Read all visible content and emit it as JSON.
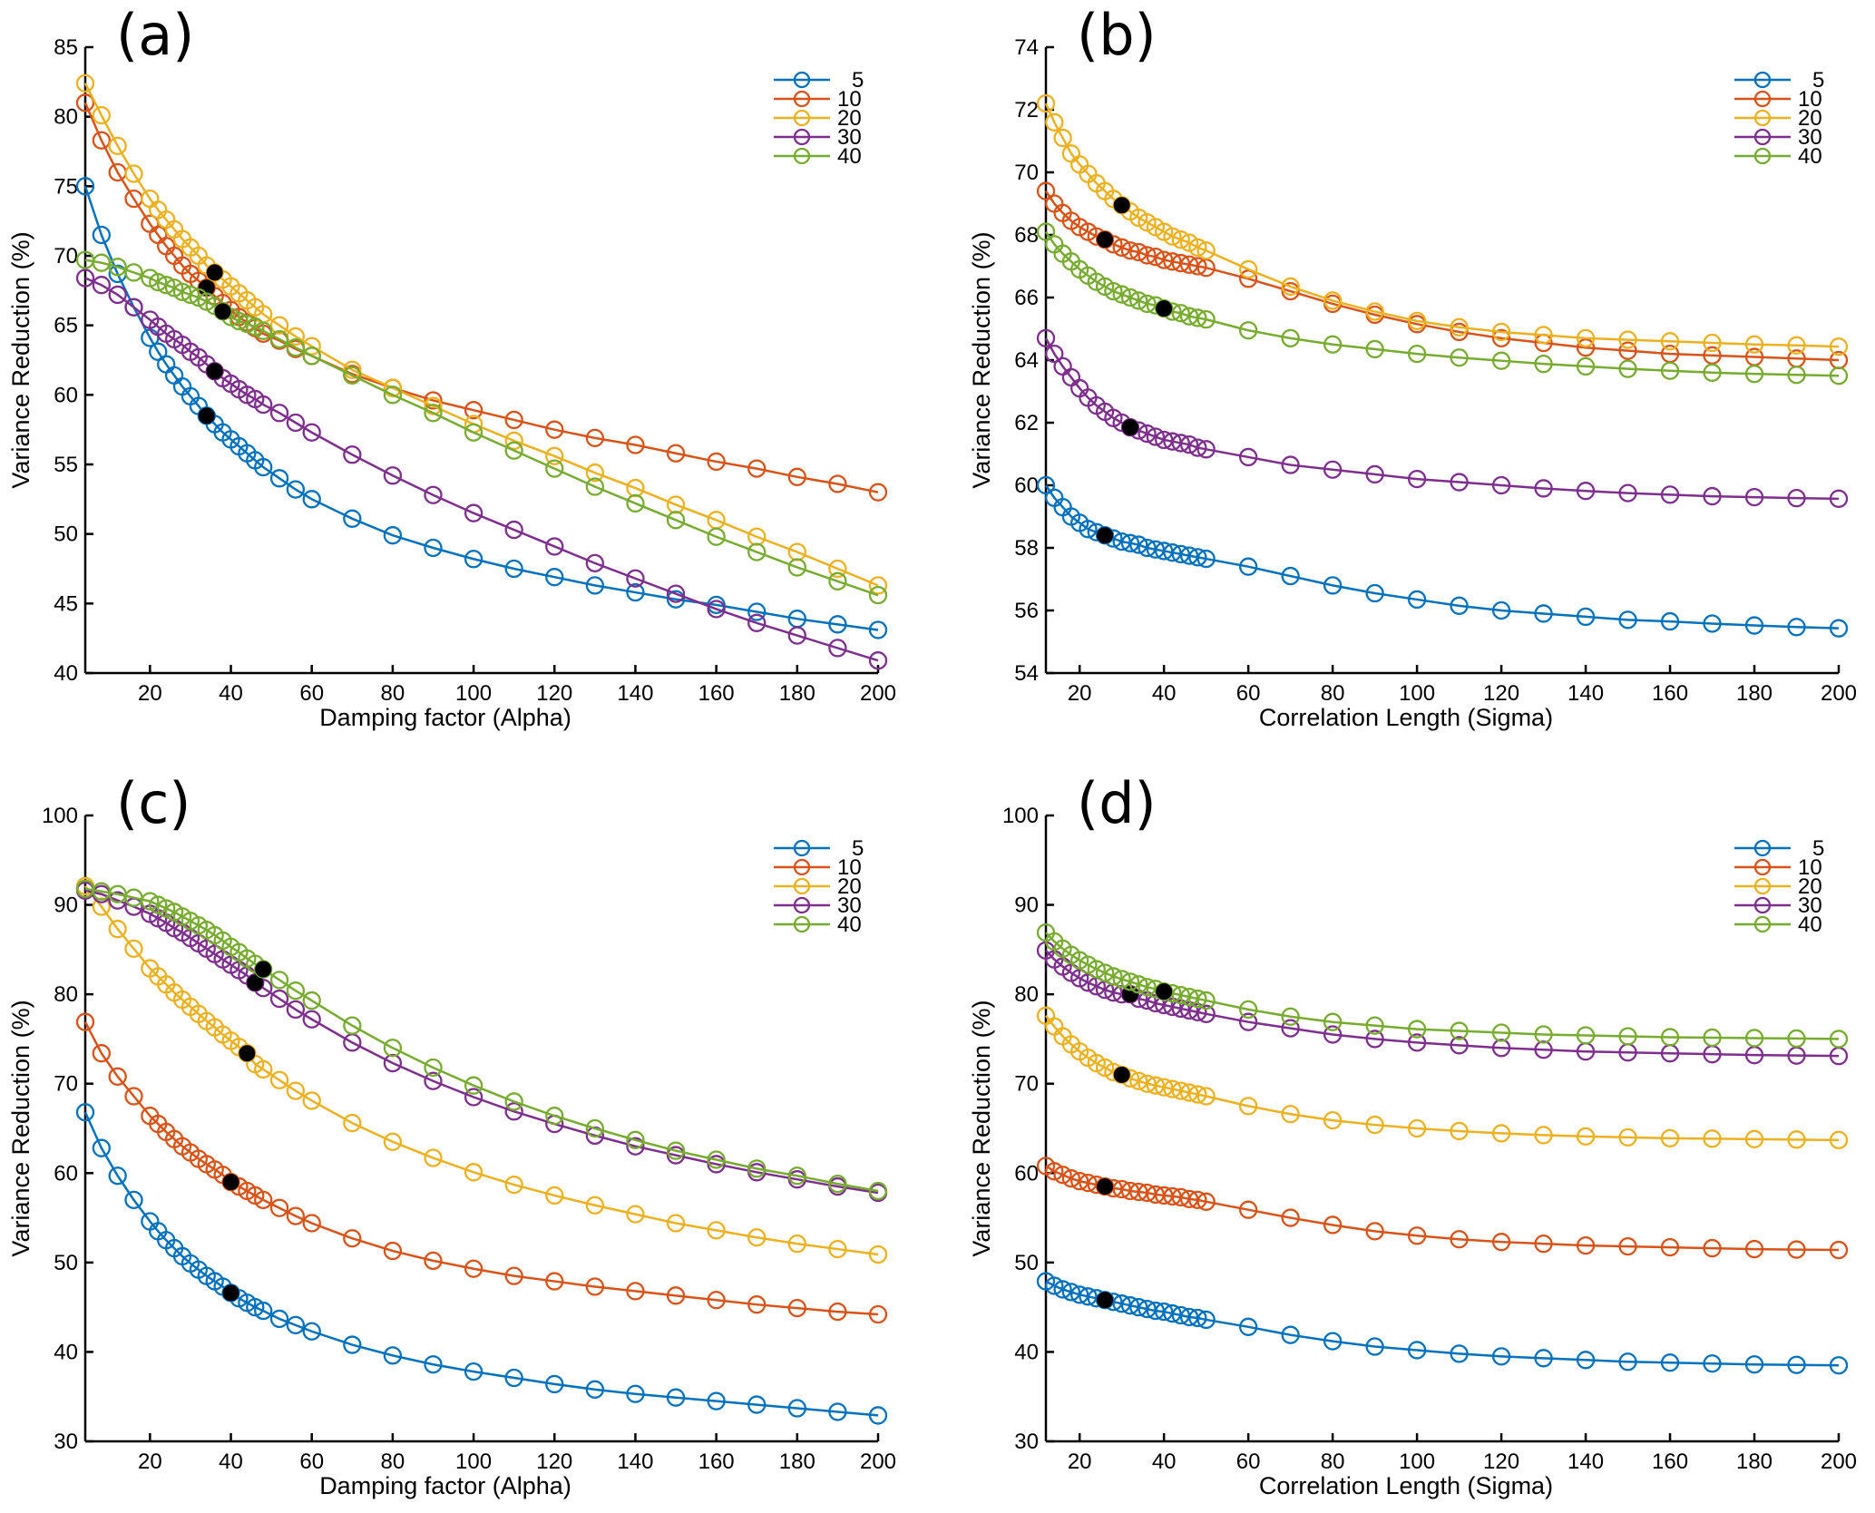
{
  "chart_data": [
    {
      "type": "line",
      "panel_label": "(a)",
      "xlabel": "Damping factor (Alpha)",
      "ylabel": "Variance Reduction (%)",
      "xlim": [
        4,
        200
      ],
      "ylim": [
        40,
        85
      ],
      "xticks": [
        20,
        40,
        60,
        80,
        100,
        120,
        140,
        160,
        180,
        200
      ],
      "yticks": [
        40,
        45,
        50,
        55,
        60,
        65,
        70,
        75,
        80,
        85
      ],
      "legend_position": "top-right",
      "x": [
        4,
        8,
        12,
        16,
        20,
        22,
        24,
        26,
        28,
        30,
        32,
        34,
        36,
        38,
        40,
        42,
        44,
        46,
        48,
        52,
        56,
        60,
        70,
        80,
        90,
        100,
        110,
        120,
        130,
        140,
        150,
        160,
        170,
        180,
        190,
        200
      ],
      "series": [
        {
          "name": "5",
          "color": "#0072BD",
          "highlight_x": 34,
          "values": [
            75.0,
            71.5,
            68.7,
            66.3,
            64.1,
            63.1,
            62.2,
            61.4,
            60.6,
            59.9,
            59.2,
            58.5,
            57.9,
            57.3,
            56.8,
            56.3,
            55.8,
            55.3,
            54.8,
            54.0,
            53.2,
            52.5,
            51.1,
            49.9,
            49.0,
            48.2,
            47.5,
            46.9,
            46.3,
            45.8,
            45.3,
            44.9,
            44.4,
            43.9,
            43.5,
            43.1
          ]
        },
        {
          "name": "10",
          "color": "#D95319",
          "highlight_x": 34,
          "values": [
            81.0,
            78.3,
            76.0,
            74.1,
            72.3,
            71.5,
            70.7,
            70.0,
            69.3,
            68.7,
            68.2,
            67.7,
            67.1,
            66.6,
            66.1,
            65.6,
            65.2,
            64.8,
            64.4,
            63.9,
            63.3,
            62.8,
            61.5,
            60.5,
            59.6,
            58.9,
            58.2,
            57.5,
            56.9,
            56.4,
            55.8,
            55.2,
            54.7,
            54.1,
            53.6,
            53.0
          ]
        },
        {
          "name": "20",
          "color": "#EDB120",
          "highlight_x": 36,
          "values": [
            82.4,
            80.1,
            77.9,
            75.9,
            74.1,
            73.3,
            72.6,
            71.9,
            71.2,
            70.6,
            70.0,
            69.3,
            68.8,
            68.3,
            67.8,
            67.3,
            66.8,
            66.3,
            65.8,
            65.0,
            64.2,
            63.5,
            61.8,
            60.5,
            59.2,
            57.9,
            56.7,
            55.6,
            54.4,
            53.3,
            52.1,
            51.0,
            49.8,
            48.7,
            47.5,
            46.3
          ]
        },
        {
          "name": "30",
          "color": "#7E2F8E",
          "highlight_x": 36,
          "values": [
            68.4,
            67.9,
            67.2,
            66.3,
            65.4,
            64.9,
            64.4,
            64.0,
            63.6,
            63.1,
            62.7,
            62.2,
            61.7,
            61.2,
            60.8,
            60.4,
            60.0,
            59.7,
            59.3,
            58.7,
            58.0,
            57.3,
            55.7,
            54.2,
            52.8,
            51.5,
            50.3,
            49.1,
            47.9,
            46.8,
            45.7,
            44.6,
            43.6,
            42.7,
            41.8,
            40.9
          ]
        },
        {
          "name": "40",
          "color": "#77AC30",
          "highlight_x": 38,
          "values": [
            69.7,
            69.5,
            69.2,
            68.8,
            68.4,
            68.1,
            67.9,
            67.7,
            67.4,
            67.2,
            67.0,
            66.7,
            66.4,
            66.0,
            65.6,
            65.3,
            65.1,
            64.9,
            64.6,
            64.0,
            63.4,
            62.8,
            61.4,
            60.0,
            58.7,
            57.3,
            56.0,
            54.7,
            53.4,
            52.2,
            51.0,
            49.8,
            48.7,
            47.6,
            46.6,
            45.6
          ]
        }
      ]
    },
    {
      "type": "line",
      "panel_label": "(b)",
      "xlabel": "Correlation Length (Sigma)",
      "ylabel": "Variance Reduction (%)",
      "xlim": [
        12,
        200
      ],
      "ylim": [
        54,
        74
      ],
      "xticks": [
        20,
        40,
        60,
        80,
        100,
        120,
        140,
        160,
        180,
        200
      ],
      "yticks": [
        54,
        56,
        58,
        60,
        62,
        64,
        66,
        68,
        70,
        72,
        74
      ],
      "legend_position": "top-right",
      "x": [
        12,
        14,
        16,
        18,
        20,
        22,
        24,
        26,
        28,
        30,
        32,
        34,
        36,
        38,
        40,
        42,
        44,
        46,
        48,
        50,
        60,
        70,
        80,
        90,
        100,
        110,
        120,
        130,
        140,
        150,
        160,
        170,
        180,
        190,
        200
      ],
      "series": [
        {
          "name": "5",
          "color": "#0072BD",
          "highlight_x": 26,
          "values": [
            60.0,
            59.6,
            59.3,
            59.0,
            58.8,
            58.6,
            58.5,
            58.4,
            58.3,
            58.2,
            58.15,
            58.1,
            58.0,
            57.95,
            57.9,
            57.85,
            57.8,
            57.75,
            57.7,
            57.65,
            57.4,
            57.1,
            56.8,
            56.55,
            56.35,
            56.15,
            56.0,
            55.9,
            55.8,
            55.7,
            55.65,
            55.58,
            55.52,
            55.47,
            55.43
          ]
        },
        {
          "name": "10",
          "color": "#D95319",
          "highlight_x": 26,
          "values": [
            69.4,
            69.0,
            68.7,
            68.45,
            68.25,
            68.1,
            67.95,
            67.85,
            67.7,
            67.6,
            67.5,
            67.45,
            67.35,
            67.3,
            67.2,
            67.15,
            67.1,
            67.05,
            67.0,
            66.95,
            66.6,
            66.2,
            65.8,
            65.45,
            65.15,
            64.9,
            64.7,
            64.55,
            64.4,
            64.3,
            64.2,
            64.15,
            64.1,
            64.05,
            64.0
          ]
        },
        {
          "name": "20",
          "color": "#EDB120",
          "highlight_x": 30,
          "values": [
            72.2,
            71.6,
            71.1,
            70.6,
            70.25,
            69.95,
            69.65,
            69.4,
            69.15,
            68.95,
            68.75,
            68.55,
            68.4,
            68.25,
            68.1,
            67.95,
            67.85,
            67.75,
            67.6,
            67.5,
            66.9,
            66.35,
            65.9,
            65.55,
            65.25,
            65.05,
            64.9,
            64.8,
            64.7,
            64.65,
            64.6,
            64.55,
            64.5,
            64.47,
            64.43
          ]
        },
        {
          "name": "30",
          "color": "#7E2F8E",
          "highlight_x": 32,
          "values": [
            64.7,
            64.2,
            63.8,
            63.45,
            63.1,
            62.8,
            62.55,
            62.35,
            62.15,
            62.0,
            61.85,
            61.75,
            61.65,
            61.55,
            61.45,
            61.4,
            61.35,
            61.3,
            61.2,
            61.15,
            60.9,
            60.65,
            60.5,
            60.35,
            60.2,
            60.1,
            60.0,
            59.9,
            59.82,
            59.75,
            59.7,
            59.65,
            59.62,
            59.59,
            59.57
          ]
        },
        {
          "name": "40",
          "color": "#77AC30",
          "highlight_x": 40,
          "values": [
            68.1,
            67.7,
            67.4,
            67.15,
            66.9,
            66.7,
            66.5,
            66.35,
            66.2,
            66.1,
            66.0,
            65.9,
            65.8,
            65.75,
            65.65,
            65.55,
            65.5,
            65.4,
            65.35,
            65.3,
            64.95,
            64.7,
            64.5,
            64.35,
            64.2,
            64.08,
            63.98,
            63.88,
            63.8,
            63.72,
            63.66,
            63.6,
            63.56,
            63.53,
            63.5
          ]
        }
      ]
    },
    {
      "type": "line",
      "panel_label": "(c)",
      "xlabel": "Damping factor (Alpha)",
      "ylabel": "Variance Reduction (%)",
      "xlim": [
        4,
        200
      ],
      "ylim": [
        30,
        100
      ],
      "xticks": [
        20,
        40,
        60,
        80,
        100,
        120,
        140,
        160,
        180,
        200
      ],
      "yticks": [
        30,
        40,
        50,
        60,
        70,
        80,
        90,
        100
      ],
      "legend_position": "top-right",
      "x": [
        4,
        8,
        12,
        16,
        20,
        22,
        24,
        26,
        28,
        30,
        32,
        34,
        36,
        38,
        40,
        42,
        44,
        46,
        48,
        52,
        56,
        60,
        70,
        80,
        90,
        100,
        110,
        120,
        130,
        140,
        150,
        160,
        170,
        180,
        190,
        200
      ],
      "series": [
        {
          "name": "5",
          "color": "#0072BD",
          "highlight_x": 40,
          "values": [
            66.8,
            62.8,
            59.7,
            57.0,
            54.6,
            53.5,
            52.5,
            51.6,
            50.7,
            49.9,
            49.2,
            48.5,
            47.9,
            47.3,
            46.6,
            46.0,
            45.5,
            45.0,
            44.6,
            43.7,
            43.0,
            42.3,
            40.8,
            39.6,
            38.6,
            37.8,
            37.1,
            36.4,
            35.8,
            35.3,
            34.9,
            34.5,
            34.1,
            33.7,
            33.3,
            32.9
          ]
        },
        {
          "name": "10",
          "color": "#D95319",
          "highlight_x": 40,
          "values": [
            76.9,
            73.4,
            70.8,
            68.6,
            66.4,
            65.5,
            64.6,
            63.8,
            63.0,
            62.3,
            61.6,
            61.0,
            60.4,
            59.8,
            59.0,
            58.5,
            58.0,
            57.5,
            57.0,
            56.1,
            55.2,
            54.4,
            52.7,
            51.3,
            50.2,
            49.3,
            48.5,
            47.9,
            47.3,
            46.8,
            46.3,
            45.8,
            45.3,
            44.9,
            44.5,
            44.2
          ]
        },
        {
          "name": "20",
          "color": "#EDB120",
          "highlight_x": 44,
          "values": [
            92.1,
            89.8,
            87.3,
            85.1,
            82.9,
            82.0,
            81.1,
            80.2,
            79.4,
            78.6,
            77.8,
            77.0,
            76.3,
            75.5,
            74.8,
            74.1,
            73.4,
            72.2,
            71.6,
            70.4,
            69.2,
            68.1,
            65.6,
            63.5,
            61.7,
            60.1,
            58.7,
            57.5,
            56.4,
            55.4,
            54.4,
            53.6,
            52.8,
            52.1,
            51.5,
            50.9
          ]
        },
        {
          "name": "30",
          "color": "#7E2F8E",
          "highlight_x": 46,
          "values": [
            91.6,
            91.2,
            90.5,
            89.8,
            89.0,
            88.5,
            88.0,
            87.4,
            86.9,
            86.3,
            85.7,
            85.1,
            84.5,
            83.9,
            83.3,
            82.7,
            82.1,
            81.3,
            80.7,
            79.5,
            78.3,
            77.2,
            74.6,
            72.3,
            70.3,
            68.5,
            66.9,
            65.5,
            64.2,
            63.0,
            62.0,
            61.0,
            60.1,
            59.3,
            58.5,
            57.8
          ]
        },
        {
          "name": "40",
          "color": "#77AC30",
          "highlight_x": 48,
          "values": [
            91.8,
            91.5,
            91.2,
            90.8,
            90.4,
            90.0,
            89.6,
            89.2,
            88.7,
            88.2,
            87.7,
            87.2,
            86.6,
            86.0,
            85.3,
            84.7,
            84.0,
            83.4,
            82.8,
            81.6,
            80.4,
            79.3,
            76.5,
            74.0,
            71.8,
            69.8,
            68.0,
            66.4,
            65.0,
            63.7,
            62.5,
            61.5,
            60.5,
            59.7,
            58.8,
            58.0
          ]
        }
      ]
    },
    {
      "type": "line",
      "panel_label": "(d)",
      "xlabel": "Correlation Length (Sigma)",
      "ylabel": "Variance Reduction (%)",
      "xlim": [
        12,
        200
      ],
      "ylim": [
        30,
        100
      ],
      "xticks": [
        20,
        40,
        60,
        80,
        100,
        120,
        140,
        160,
        180,
        200
      ],
      "yticks": [
        30,
        40,
        50,
        60,
        70,
        80,
        90,
        100
      ],
      "legend_position": "top-right",
      "x": [
        12,
        14,
        16,
        18,
        20,
        22,
        24,
        26,
        28,
        30,
        32,
        34,
        36,
        38,
        40,
        42,
        44,
        46,
        48,
        50,
        60,
        70,
        80,
        90,
        100,
        110,
        120,
        130,
        140,
        150,
        160,
        170,
        180,
        190,
        200
      ],
      "series": [
        {
          "name": "5",
          "color": "#0072BD",
          "highlight_x": 26,
          "values": [
            47.9,
            47.4,
            47.0,
            46.7,
            46.4,
            46.2,
            46.0,
            45.8,
            45.6,
            45.4,
            45.2,
            45.0,
            44.8,
            44.6,
            44.5,
            44.3,
            44.1,
            43.9,
            43.8,
            43.6,
            42.8,
            41.9,
            41.2,
            40.6,
            40.2,
            39.8,
            39.5,
            39.3,
            39.1,
            38.9,
            38.8,
            38.7,
            38.6,
            38.55,
            38.5
          ]
        },
        {
          "name": "10",
          "color": "#D95319",
          "highlight_x": 26,
          "values": [
            60.8,
            60.2,
            59.8,
            59.4,
            59.1,
            58.9,
            58.7,
            58.5,
            58.3,
            58.2,
            58.0,
            57.9,
            57.8,
            57.6,
            57.5,
            57.4,
            57.3,
            57.1,
            57.0,
            56.8,
            55.9,
            55.0,
            54.2,
            53.5,
            53.0,
            52.6,
            52.3,
            52.1,
            51.9,
            51.8,
            51.7,
            51.6,
            51.5,
            51.45,
            51.4
          ]
        },
        {
          "name": "20",
          "color": "#EDB120",
          "highlight_x": 30,
          "values": [
            77.6,
            76.4,
            75.3,
            74.4,
            73.6,
            72.9,
            72.3,
            71.8,
            71.3,
            71.0,
            70.6,
            70.3,
            70.0,
            69.8,
            69.6,
            69.4,
            69.2,
            69.0,
            68.8,
            68.6,
            67.5,
            66.6,
            65.9,
            65.4,
            65.0,
            64.7,
            64.45,
            64.25,
            64.1,
            64.0,
            63.9,
            63.85,
            63.8,
            63.75,
            63.7
          ]
        },
        {
          "name": "30",
          "color": "#7E2F8E",
          "highlight_x": 32,
          "values": [
            84.9,
            83.9,
            83.1,
            82.4,
            81.8,
            81.3,
            80.9,
            80.5,
            80.2,
            80.0,
            80.0,
            79.5,
            79.3,
            79.0,
            78.8,
            78.6,
            78.4,
            78.2,
            78.0,
            77.8,
            76.9,
            76.2,
            75.5,
            75.0,
            74.6,
            74.3,
            74.0,
            73.8,
            73.6,
            73.5,
            73.4,
            73.3,
            73.2,
            73.15,
            73.1
          ]
        },
        {
          "name": "40",
          "color": "#77AC30",
          "highlight_x": 40,
          "values": [
            86.9,
            85.9,
            85.1,
            84.4,
            83.8,
            83.3,
            82.8,
            82.4,
            82.0,
            81.7,
            81.4,
            81.1,
            80.8,
            80.6,
            80.3,
            80.1,
            79.9,
            79.7,
            79.5,
            79.3,
            78.3,
            77.5,
            76.9,
            76.5,
            76.1,
            75.9,
            75.7,
            75.5,
            75.4,
            75.3,
            75.2,
            75.15,
            75.1,
            75.05,
            75.0
          ]
        }
      ]
    }
  ]
}
